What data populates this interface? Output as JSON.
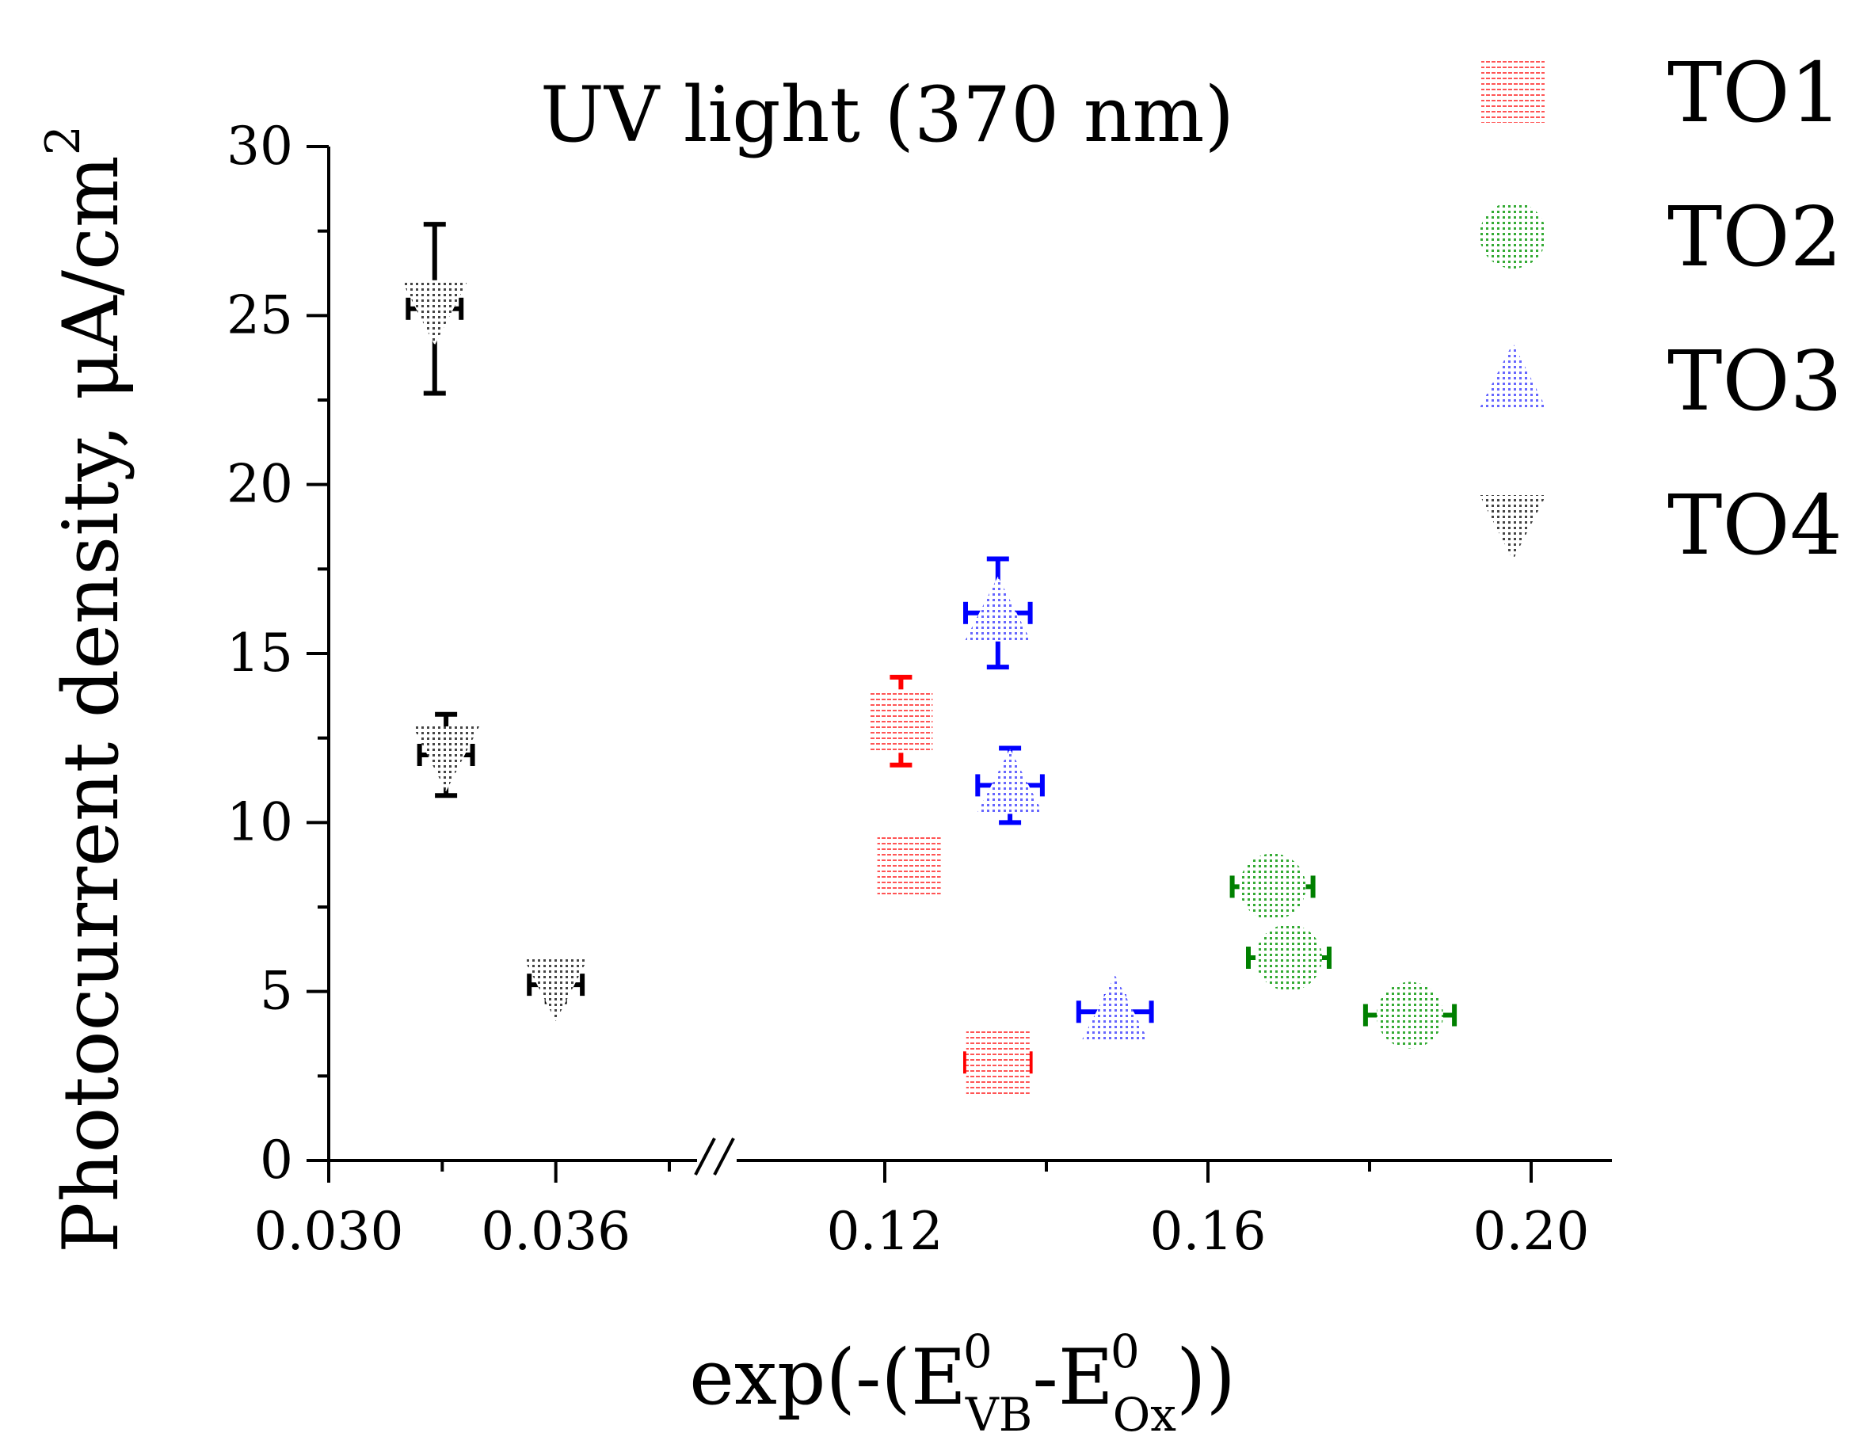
{
  "chart_data": {
    "type": "scatter",
    "title": "UV light (370 nm)",
    "xlabel": {
      "prefix": "exp(-(E",
      "sup1": "0",
      "sub1": "VB",
      "middle": "-E",
      "sup2": "0",
      "sub2": "Ox",
      "suffix": "))"
    },
    "ylabel": {
      "main": "Photocurrent density, μA/cm",
      "sup": "2"
    },
    "ylim": [
      0,
      30
    ],
    "yticks": [
      0,
      5,
      10,
      15,
      20,
      25,
      30
    ],
    "ytick_labels": [
      "0",
      "5",
      "10",
      "15",
      "20",
      "25",
      "30"
    ],
    "x_broken": true,
    "x_segments": [
      {
        "range": [
          0.03,
          0.039
        ],
        "ticks": [
          0.03,
          0.036
        ],
        "tick_labels": [
          "0.030",
          "0.036"
        ],
        "minor_ticks": [
          0.033,
          0.039
        ]
      },
      {
        "range": [
          0.11,
          0.21
        ],
        "ticks": [
          0.12,
          0.16,
          0.2
        ],
        "tick_labels": [
          "0.12",
          "0.16",
          "0.20"
        ],
        "minor_ticks": [
          0.14,
          0.18
        ]
      }
    ],
    "series": [
      {
        "name": "TO1",
        "marker": "square",
        "color": "#ff0000",
        "points": [
          {
            "x": 0.122,
            "y": 13.0,
            "xerr": 0.0015,
            "yerr": 1.3
          },
          {
            "x": 0.123,
            "y": 8.7,
            "xerr": 0.0015,
            "yerr": 0.85
          },
          {
            "x": 0.134,
            "y": 2.9,
            "xerr": 0.004,
            "yerr": 0.35
          }
        ]
      },
      {
        "name": "TO2",
        "marker": "circle",
        "color": "#008000",
        "points": [
          {
            "x": 0.168,
            "y": 8.1,
            "xerr": 0.005,
            "yerr": 0.85
          },
          {
            "x": 0.17,
            "y": 6.0,
            "xerr": 0.005,
            "yerr": 0.65
          },
          {
            "x": 0.185,
            "y": 4.3,
            "xerr": 0.0055,
            "yerr": 0.45
          }
        ]
      },
      {
        "name": "TO3",
        "marker": "triangle-up",
        "color": "#0000ff",
        "points": [
          {
            "x": 0.134,
            "y": 16.2,
            "xerr": 0.004,
            "yerr": 1.6
          },
          {
            "x": 0.1355,
            "y": 11.1,
            "xerr": 0.004,
            "yerr": 1.1
          },
          {
            "x": 0.1485,
            "y": 4.4,
            "xerr": 0.0045,
            "yerr": 0.45
          }
        ]
      },
      {
        "name": "TO4",
        "marker": "triangle-down",
        "color": "#000000",
        "points": [
          {
            "x": 0.0328,
            "y": 25.2,
            "xerr": 0.0007,
            "yerr": 2.5
          },
          {
            "x": 0.0331,
            "y": 12.0,
            "xerr": 0.0007,
            "yerr": 1.2
          },
          {
            "x": 0.036,
            "y": 5.2,
            "xerr": 0.0007,
            "yerr": 0.5
          }
        ]
      }
    ],
    "legend": {
      "position": "top-right, outside plot"
    },
    "grid": false
  }
}
